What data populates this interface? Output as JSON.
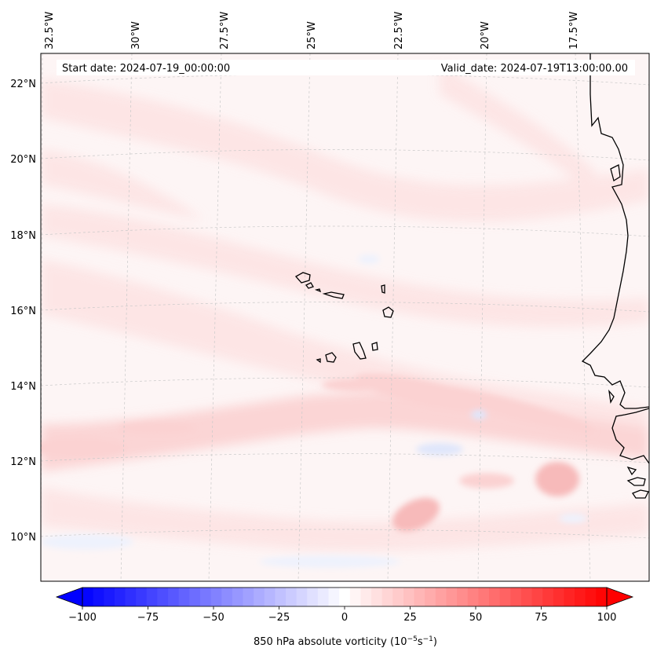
{
  "header": {
    "start_date": "Start date: 2024-07-19_00:00:00",
    "valid_date": "Valid_date: 2024-07-19T13:00:00.00"
  },
  "longitude_ticks": [
    "32.5°W",
    "30°W",
    "27.5°W",
    "25°W",
    "22.5°W",
    "20°W",
    "17.5°W"
  ],
  "latitude_ticks": [
    "22°N",
    "20°N",
    "18°N",
    "16°N",
    "14°N",
    "12°N",
    "10°N"
  ],
  "colorbar": {
    "min": -100,
    "max": 100,
    "levels": 49,
    "ticks": [
      "−100",
      "−75",
      "−50",
      "−25",
      "0",
      "25",
      "50",
      "75",
      "100"
    ],
    "label": "850 hPa absolute vorticity (10",
    "label_exp1": "−5",
    "label_mid": "s",
    "label_exp2": "−1",
    "label_end": ")",
    "low_color": "#0000ff",
    "high_color": "#ff0000",
    "mid_color": "#ffffff"
  },
  "field_colors": {
    "background": "#fdf5f5",
    "weak_positive": "#fde4e4",
    "moderate_positive": "#fbd2d2",
    "strong_positive": "#f7baba",
    "weak_negative": "#eef2fd",
    "moderate_negative": "#dfe6fb"
  },
  "features": {
    "coastline": "West African coast",
    "islands": "Cabo Verde islands"
  }
}
